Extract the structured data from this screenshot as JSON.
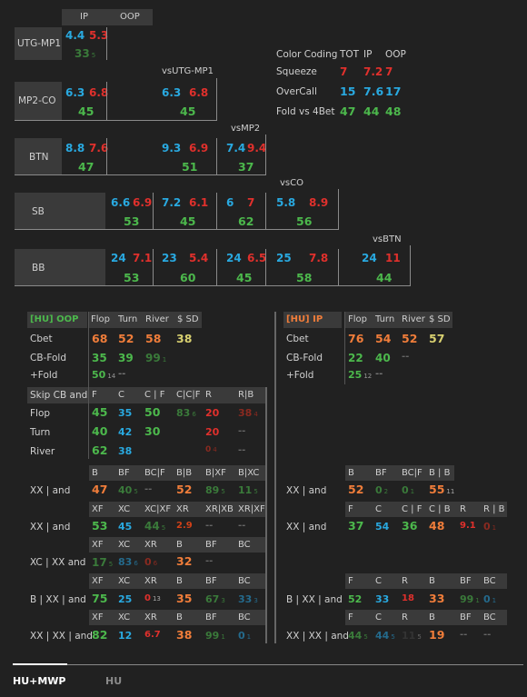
{
  "top": {
    "col_ip": "IP",
    "col_oop": "OOP",
    "rows": [
      {
        "label": "UTG-MP1"
      },
      {
        "label": "MP2-CO",
        "vs": "vsUTG-MP1"
      },
      {
        "label": "BTN",
        "vs": "vsMP2"
      },
      {
        "label": "SB",
        "vs": "vsCO"
      },
      {
        "label": "BB",
        "vs": "vsBTN"
      }
    ],
    "utg": {
      "ip": "4.4",
      "oop": "5.3",
      "c": "33",
      "c_sub": "5"
    },
    "mp2": {
      "a": "6.3",
      "b": "6.8",
      "c": "45",
      "a2": "6.3",
      "b2": "6.8",
      "c2": "45"
    },
    "btn": {
      "a": "8.8",
      "b": "7.6",
      "c": "47",
      "a2": "9.3",
      "b2": "6.9",
      "c2": "51",
      "a3": "7.4",
      "b3": "9.4",
      "c3": "37"
    },
    "sb": {
      "a": "6.6",
      "b": "6.9",
      "c": "53",
      "a2": "7.2",
      "b2": "6.1",
      "c2": "45",
      "a3": "6",
      "b3": "7",
      "c3": "62",
      "a4": "5.8",
      "b4": "8.9",
      "c4": "56"
    },
    "bb": {
      "a": "24",
      "b": "7.1",
      "c": "53",
      "a2": "23",
      "b2": "5.4",
      "c2": "60",
      "a3": "24",
      "b3": "6.5",
      "c3": "45",
      "a4": "25",
      "b4": "7.8",
      "c4": "58",
      "a5": "24",
      "b5": "11",
      "c5": "44"
    }
  },
  "legend": {
    "title": "Color Coding",
    "h_tot": "TOT",
    "h_ip": "IP",
    "h_oop": "OOP",
    "rows": [
      {
        "name": "Squeeze",
        "tot": "7",
        "ip": "7.2",
        "oop": "7"
      },
      {
        "name": "OverCall",
        "tot": "15",
        "ip": "7.6",
        "oop": "17"
      },
      {
        "name": "Fold vs 4Bet",
        "tot": "47",
        "ip": "44",
        "oop": "48"
      }
    ]
  },
  "oop": {
    "title": "[HU] OOP",
    "h_flop": "Flop",
    "h_turn": "Turn",
    "h_river": "River",
    "h_sd": "$ SD",
    "cbet": {
      "label": "Cbet",
      "flop": "68",
      "turn": "52",
      "river": "58",
      "sd": "38"
    },
    "cbfold": {
      "label": "CB-Fold",
      "flop": "35",
      "turn": "39",
      "river": "99",
      "river_sub": "1"
    },
    "plusfold": {
      "label": "+Fold",
      "flop": "50",
      "flop_sub": "14",
      "turn": "--"
    },
    "skip": {
      "label": "Skip CB and",
      "h": [
        "F",
        "C",
        "C | F",
        "C|C|F",
        "R",
        "R|B"
      ],
      "flop": {
        "label": "Flop",
        "v": [
          "45",
          "35",
          "50",
          "83",
          "20",
          "38"
        ],
        "subs": [
          "",
          "",
          "",
          "6",
          "",
          "4"
        ]
      },
      "turn": {
        "label": "Turn",
        "v": [
          "40",
          "42",
          "30",
          "",
          "20",
          "--"
        ]
      },
      "river": {
        "label": "River",
        "v": [
          "62",
          "38",
          "",
          "",
          "0",
          "--"
        ],
        "subs": [
          "",
          "",
          "",
          "",
          "4",
          ""
        ]
      }
    },
    "xx": {
      "label": "XX | and",
      "h": [
        "B",
        "BF",
        "BC|F",
        "B|B",
        "B|XF",
        "B|XC"
      ],
      "v": [
        "47",
        "40",
        "--",
        "52",
        "89",
        "11"
      ],
      "subs": [
        "",
        "5",
        "",
        "",
        "5",
        "5"
      ]
    },
    "xxb": {
      "label": "XX | and",
      "h": [
        "XF",
        "XC",
        "XC|XF",
        "XR",
        "XR|XB",
        "XR|XF"
      ],
      "v": [
        "53",
        "45",
        "44",
        "2.9",
        "--",
        "--"
      ],
      "subs": [
        "",
        "",
        "5",
        "",
        "",
        ""
      ]
    },
    "xcxx": {
      "label": "XC | XX and",
      "h": [
        "XF",
        "XC",
        "XR",
        "B",
        "BF",
        "BC"
      ],
      "v": [
        "17",
        "83",
        "0",
        "32",
        "--",
        ""
      ],
      "subs": [
        "5",
        "6",
        "6",
        "",
        "",
        ""
      ]
    },
    "bxx": {
      "label": "B | XX | and",
      "h": [
        "XF",
        "XC",
        "XR",
        "B",
        "BF",
        "BC"
      ],
      "v": [
        "75",
        "25",
        "0",
        "35",
        "67",
        "33"
      ],
      "subs": [
        "",
        "",
        "13",
        "",
        "3",
        "3"
      ]
    },
    "xxxx": {
      "label": "XX | XX | and",
      "h": [
        "XF",
        "XC",
        "XR",
        "B",
        "BF",
        "BC"
      ],
      "v": [
        "82",
        "12",
        "6.7",
        "38",
        "99",
        "0"
      ],
      "subs": [
        "",
        "",
        "",
        "",
        "1",
        "1"
      ]
    }
  },
  "ip": {
    "title": "[HU] IP",
    "h_flop": "Flop",
    "h_turn": "Turn",
    "h_river": "River",
    "h_sd": "$ SD",
    "cbet": {
      "label": "Cbet",
      "flop": "76",
      "turn": "54",
      "river": "52",
      "sd": "57"
    },
    "cbfold": {
      "label": "CB-Fold",
      "flop": "22",
      "turn": "40",
      "river": "--"
    },
    "plusfold": {
      "label": "+Fold",
      "flop": "25",
      "flop_sub": "12",
      "turn": "--"
    },
    "xx": {
      "label": "XX | and",
      "h": [
        "B",
        "BF",
        "BC|F",
        "B | B"
      ],
      "v": [
        "52",
        "0",
        "0",
        "55"
      ],
      "subs": [
        "",
        "2",
        "1",
        "11"
      ]
    },
    "xxb": {
      "label": "XX | and",
      "h": [
        "F",
        "C",
        "C | F",
        "C | B",
        "R",
        "R | B"
      ],
      "v": [
        "37",
        "54",
        "36",
        "48",
        "9.1",
        "0"
      ],
      "subs": [
        "",
        "",
        "",
        "",
        "",
        "1"
      ]
    },
    "bxx": {
      "label": "B | XX | and",
      "h": [
        "F",
        "C",
        "R",
        "B",
        "BF",
        "BC"
      ],
      "v": [
        "52",
        "33",
        "18",
        "33",
        "99",
        "0"
      ],
      "subs": [
        "",
        "",
        "",
        "",
        "1",
        "1"
      ]
    },
    "xxxx": {
      "label": "XX | XX | and",
      "h": [
        "F",
        "C",
        "R",
        "B",
        "BF",
        "BC"
      ],
      "v": [
        "44",
        "44",
        "11",
        "19",
        "--",
        "--"
      ],
      "subs": [
        "5",
        "5",
        "5",
        "",
        "",
        ""
      ]
    }
  },
  "tabs": [
    {
      "label": "HU+MWP"
    },
    {
      "label": "HU"
    }
  ]
}
